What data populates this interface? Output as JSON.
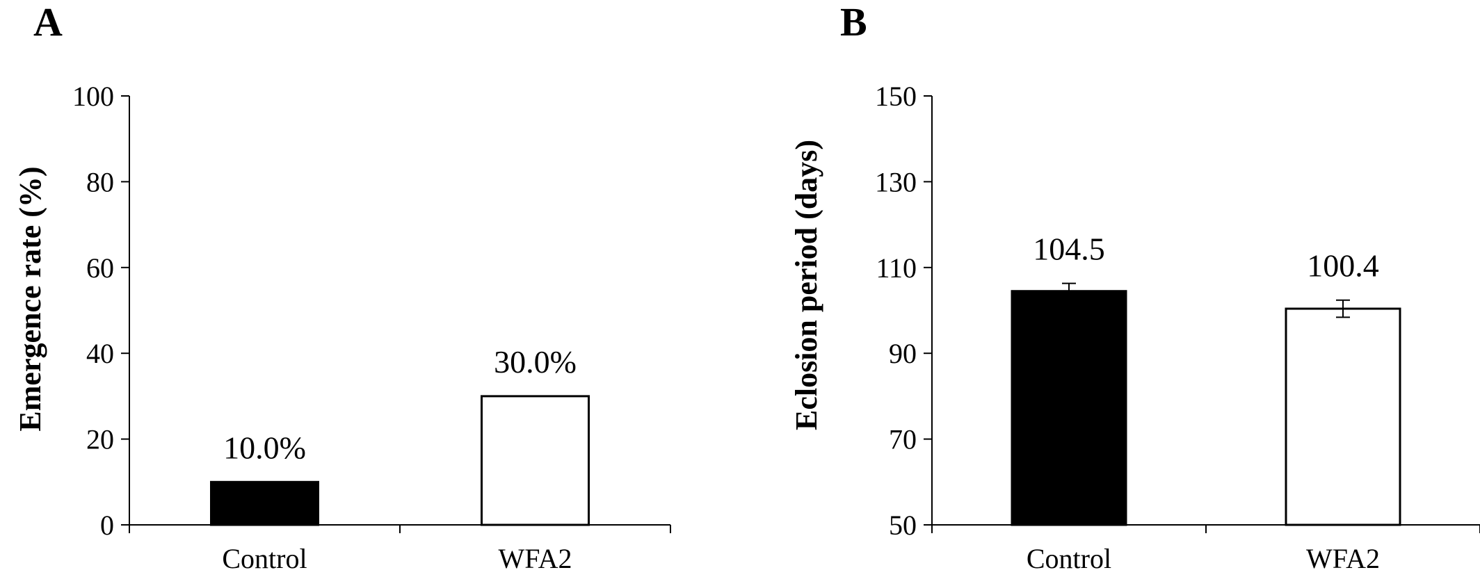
{
  "chart_data": [
    {
      "type": "bar",
      "panel_label": "A",
      "categories": [
        "Control",
        "WFA2"
      ],
      "values": [
        10.0,
        30.0
      ],
      "data_labels": [
        "10.0%",
        "30.0%"
      ],
      "bar_fill": [
        "#000000",
        "#ffffff"
      ],
      "ylabel": "Emergence rate (%)",
      "xlabel": "",
      "ylim": [
        0,
        100
      ],
      "yticks": [
        0,
        20,
        40,
        60,
        80,
        100
      ],
      "ytick_labels": [
        "0",
        "20",
        "40",
        "60",
        "80",
        "100"
      ],
      "grid": false
    },
    {
      "type": "bar",
      "panel_label": "B",
      "categories": [
        "Control",
        "WFA2"
      ],
      "values": [
        104.5,
        100.4
      ],
      "errors": [
        1.8,
        2.0
      ],
      "data_labels": [
        "104.5",
        "100.4"
      ],
      "bar_fill": [
        "#000000",
        "#ffffff"
      ],
      "ylabel": "Eclosion period (days)",
      "xlabel": "",
      "ylim": [
        50,
        150
      ],
      "yticks": [
        50,
        70,
        90,
        110,
        130,
        150
      ],
      "ytick_labels": [
        "50",
        "70",
        "90",
        "110",
        "130",
        "150"
      ],
      "grid": false
    }
  ]
}
